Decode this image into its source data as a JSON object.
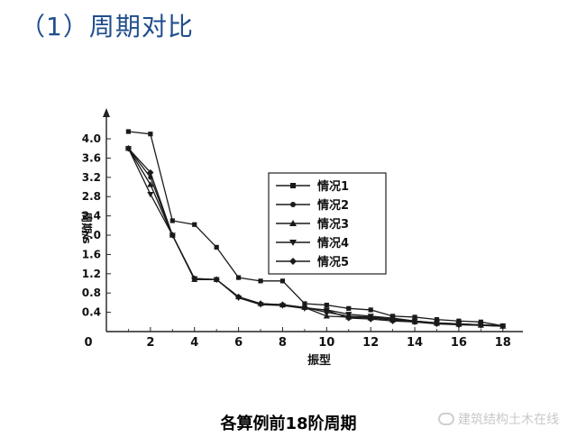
{
  "heading": "（1）周期对比",
  "caption_prefix": "各算例前",
  "caption_number": "18",
  "caption_suffix": "阶周期",
  "watermark": "建筑结构土木在线",
  "chart_data": {
    "type": "line",
    "xlabel": "振型",
    "ylabel": "周期/s",
    "xlim": [
      0,
      18.5
    ],
    "ylim": [
      0,
      4.3
    ],
    "xticks": [
      0,
      2,
      4,
      6,
      8,
      10,
      12,
      14,
      16,
      18
    ],
    "yticks": [
      0.4,
      0.8,
      1.2,
      1.6,
      2.0,
      2.4,
      2.8,
      3.2,
      3.6,
      4.0
    ],
    "grid": false,
    "legend_position": "center-right",
    "x": [
      1,
      2,
      3,
      4,
      5,
      6,
      7,
      8,
      9,
      10,
      11,
      12,
      13,
      14,
      15,
      16,
      17,
      18
    ],
    "series": [
      {
        "name": "情况1",
        "marker": "square",
        "values": [
          4.15,
          4.1,
          2.3,
          2.22,
          1.75,
          1.12,
          1.05,
          1.05,
          0.58,
          0.55,
          0.48,
          0.45,
          0.32,
          0.3,
          0.25,
          0.22,
          0.2,
          0.12
        ]
      },
      {
        "name": "情况2",
        "marker": "circle",
        "values": [
          3.8,
          3.2,
          2.0,
          1.08,
          1.08,
          0.72,
          0.58,
          0.55,
          0.5,
          0.4,
          0.32,
          0.3,
          0.26,
          0.22,
          0.18,
          0.16,
          0.14,
          0.12
        ]
      },
      {
        "name": "情况3",
        "marker": "triangle-up",
        "values": [
          3.8,
          3.05,
          2.0,
          1.08,
          1.08,
          0.72,
          0.58,
          0.55,
          0.5,
          0.32,
          0.3,
          0.28,
          0.24,
          0.2,
          0.17,
          0.15,
          0.13,
          0.11
        ]
      },
      {
        "name": "情况4",
        "marker": "triangle-down",
        "values": [
          3.8,
          2.85,
          2.0,
          1.1,
          1.08,
          0.7,
          0.56,
          0.54,
          0.48,
          0.45,
          0.36,
          0.32,
          0.28,
          0.22,
          0.18,
          0.16,
          0.14,
          0.12
        ]
      },
      {
        "name": "情况5",
        "marker": "diamond",
        "values": [
          3.8,
          3.3,
          2.0,
          1.1,
          1.08,
          0.72,
          0.58,
          0.56,
          0.5,
          0.44,
          0.28,
          0.26,
          0.22,
          0.2,
          0.16,
          0.14,
          0.13,
          0.11
        ]
      }
    ],
    "colors": {
      "line": "#1a1a1a",
      "axis": "#222222"
    }
  }
}
